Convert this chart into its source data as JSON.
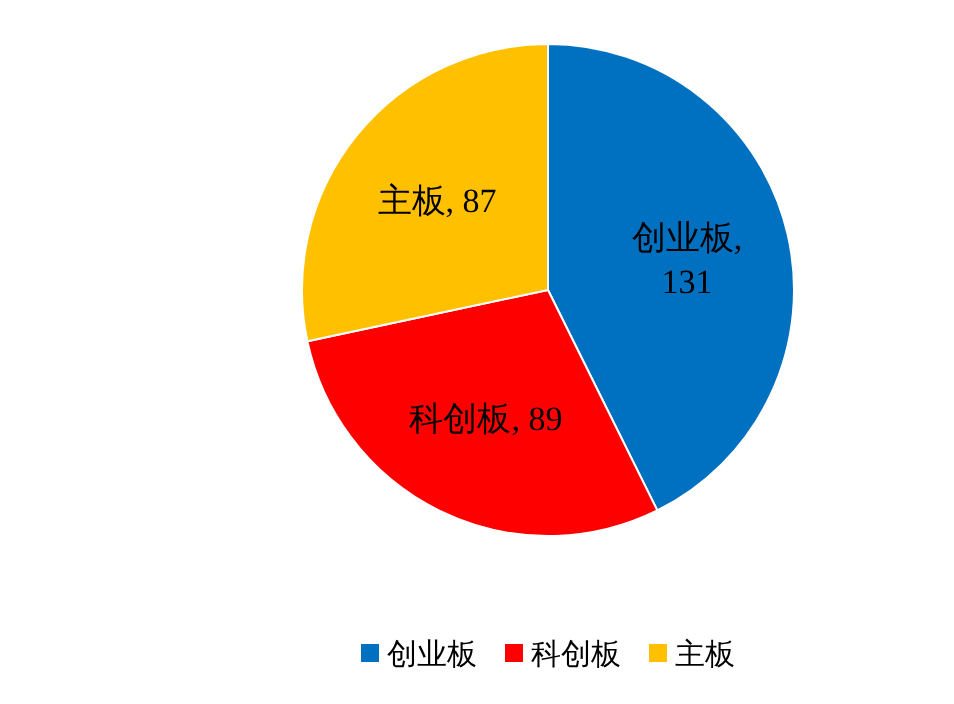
{
  "chart_data": {
    "type": "pie",
    "categories": [
      "创业板",
      "科创板",
      "主板"
    ],
    "values": [
      131,
      89,
      87
    ],
    "colors": [
      "#0070c0",
      "#ff0000",
      "#ffc000"
    ],
    "value_labels": [
      "创业板, 131",
      "科创板, 89",
      "主板, 87"
    ],
    "legend": "bottom"
  }
}
